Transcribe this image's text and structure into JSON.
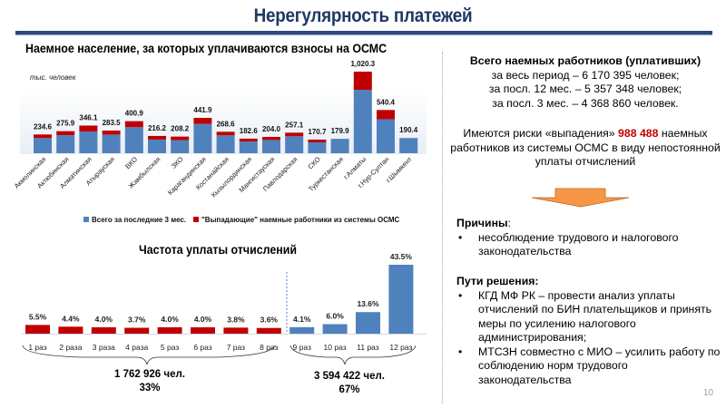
{
  "header": {
    "title": "Нерегулярность платежей"
  },
  "chart_data": [
    {
      "type": "bar",
      "stacked": true,
      "title": "Наемное население, за которых уплачиваются взносы на ОСМС",
      "ylabel": "тыс. человек",
      "categories": [
        "Акмолинская",
        "Актюбинская",
        "Алматинская",
        "Атырауская",
        "ВКО",
        "Жамбылская",
        "ЗКО",
        "Карагандинская",
        "Костанайская",
        "Кызылординская",
        "Мангистауская",
        "Павлодарская",
        "СКО",
        "Туркестанская",
        "г.Алматы",
        "г.Нур-Султан",
        "г.Шымкент"
      ],
      "totals": [
        234.6,
        275.9,
        346.1,
        283.5,
        400.9,
        216.2,
        208.2,
        441.9,
        268.6,
        182.6,
        204.0,
        257.1,
        170.7,
        179.9,
        1020.3,
        540.4,
        190.4
      ],
      "total_labels": [
        "234.6",
        "275.9",
        "346.1",
        "283.5",
        "400.9",
        "216.2",
        "208.2",
        "441.9",
        "268.6",
        "182.6",
        "204.0",
        "257.1",
        "170.7",
        "179.9",
        "1,020.3",
        "540.4",
        "190.4"
      ],
      "series": [
        {
          "name": "Всего за последние 3 мес.",
          "color": "#4f81bd",
          "values": [
            189.6,
            225.9,
            271.1,
            233.5,
            325.9,
            171.2,
            163.2,
            366.9,
            223.6,
            147.6,
            166.0,
            212.1,
            135.7,
            179.9,
            793.3,
            425.4,
            190.4
          ]
        },
        {
          "name": "\"Выпадающие\"  наемные работники из системы ОСМС",
          "color": "#c00000",
          "values": [
            45,
            50,
            75,
            50,
            75,
            45,
            45,
            75,
            45,
            35,
            38,
            45,
            35,
            0,
            227,
            115,
            0
          ]
        }
      ],
      "ylim": [
        0,
        1100
      ],
      "legend": "bottom"
    },
    {
      "type": "bar",
      "title": "Частота уплаты отчислений",
      "categories": [
        "1 раз",
        "2 раза",
        "3 раза",
        "4 раза",
        "5 раз",
        "6 раз",
        "7 раз",
        "8 раз",
        "9 раз",
        "10 раз",
        "11 раз",
        "12 раз"
      ],
      "values": [
        5.5,
        4.4,
        4.0,
        3.7,
        4.0,
        4.0,
        3.8,
        3.6,
        4.1,
        6.0,
        13.6,
        43.5
      ],
      "value_labels": [
        "5.5%",
        "4.4%",
        "4.0%",
        "3.7%",
        "4.0%",
        "4.0%",
        "3.8%",
        "3.6%",
        "4.1%",
        "6.0%",
        "13.6%",
        "43.5%"
      ],
      "colors": [
        "#c00000",
        "#c00000",
        "#c00000",
        "#c00000",
        "#c00000",
        "#c00000",
        "#c00000",
        "#c00000",
        "#4f81bd",
        "#4f81bd",
        "#4f81bd",
        "#4f81bd"
      ],
      "unit": "%",
      "ylim": [
        0,
        45
      ],
      "groups": [
        {
          "range": "1 раз – 8 раз",
          "count": "1 762 926 чел.",
          "share": "33%"
        },
        {
          "range": "9 раз – 12 раз",
          "count": "3 594 422 чел.",
          "share": "67%"
        }
      ]
    }
  ],
  "summary": {
    "heading": "Всего наемных работников (уплативших)",
    "lines": [
      "за весь период – 6 170 395 человек;",
      "за посл. 12 мес. – 5 357 348 человек;",
      "за посл. 3 мес. – 4 368 860 человек."
    ],
    "risk_pre": "Имеются риски «выпадения» ",
    "risk_num": "988 488",
    "risk_post": " наемных работников из системы ОСМС в виду непостоянной уплаты отчислений",
    "arrow_color": "#f79646"
  },
  "causes": {
    "heading": "Причины",
    "colon": ":",
    "items": [
      "несоблюдение трудового  и налогового законодательства"
    ]
  },
  "solutions": {
    "heading": "Пути решения:",
    "items": [
      "КГД МФ РК – провести анализ уплаты отчислений по БИН плательщиков и принять меры по усилению налогового администрирования;",
      "МТСЗН совместно с МИО – усилить работу по соблюдению норм трудового законодательства"
    ]
  },
  "bullet_char": "•",
  "page_number": "10"
}
